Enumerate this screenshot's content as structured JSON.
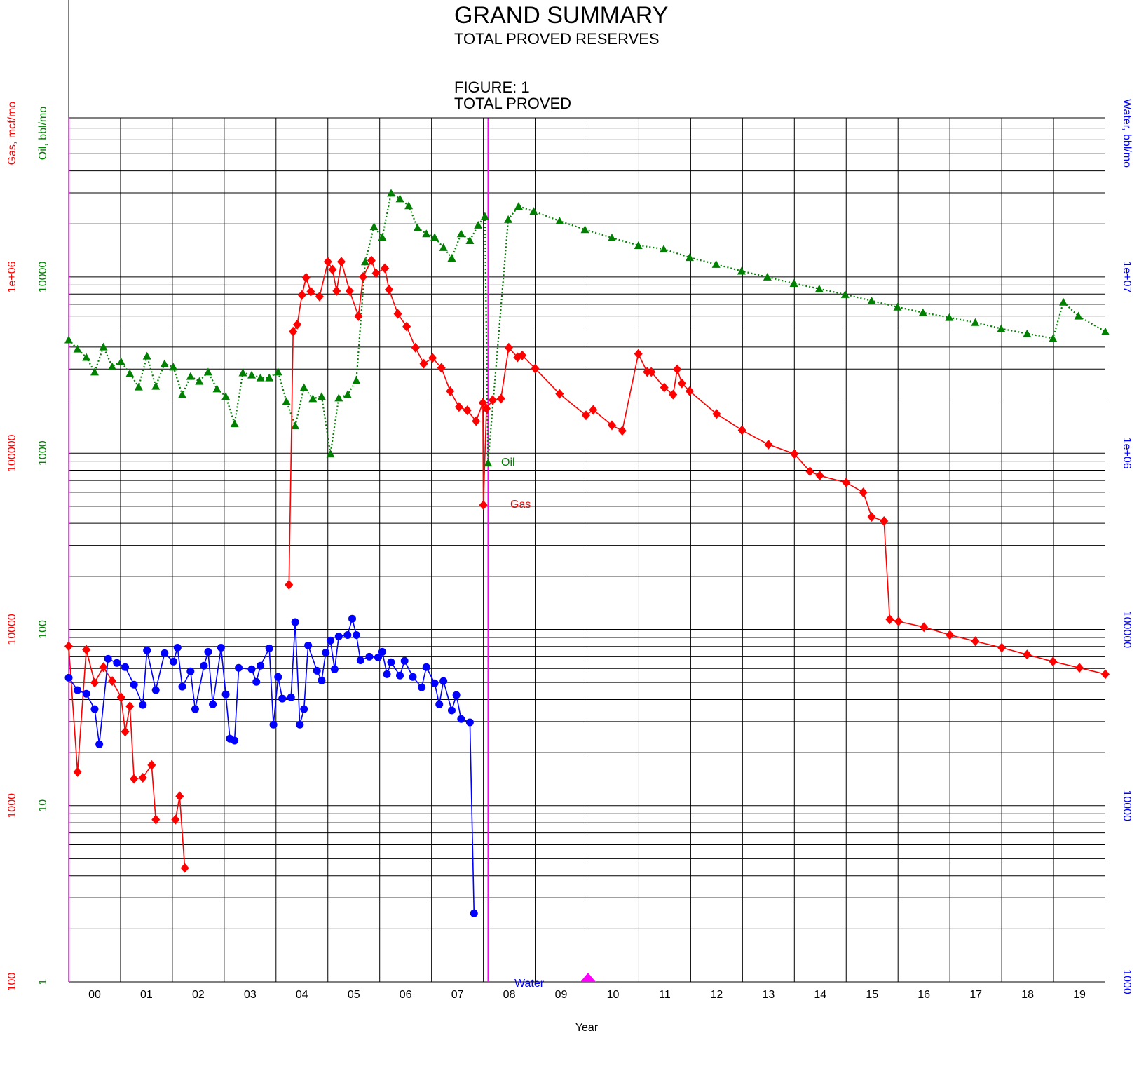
{
  "chart_data": {
    "type": "line",
    "title": "GRAND SUMMARY",
    "subtitle": "TOTAL PROVED RESERVES",
    "annotations": [
      "FIGURE: 1",
      "TOTAL PROVED"
    ],
    "x_label": "Year",
    "y_label": "Oil, bbl/mo",
    "y2_label": "Water, bbl/mo",
    "y3_label": "Gas, mcf/mo",
    "log_scale": true,
    "grid": true,
    "xlim": [
      2000,
      2020
    ],
    "xticks": [
      {
        "value": 2000.5,
        "label": "00"
      },
      {
        "value": 2001.5,
        "label": "01"
      },
      {
        "value": 2002.5,
        "label": "02"
      },
      {
        "value": 2003.5,
        "label": "03"
      },
      {
        "value": 2004.5,
        "label": "04"
      },
      {
        "value": 2005.5,
        "label": "05"
      },
      {
        "value": 2006.5,
        "label": "06"
      },
      {
        "value": 2007.5,
        "label": "07"
      },
      {
        "value": 2008.5,
        "label": "08"
      },
      {
        "value": 2009.5,
        "label": "09"
      },
      {
        "value": 2010.5,
        "label": "10"
      },
      {
        "value": 2011.5,
        "label": "11"
      },
      {
        "value": 2012.5,
        "label": "12"
      },
      {
        "value": 2013.5,
        "label": "13"
      },
      {
        "value": 2014.5,
        "label": "14"
      },
      {
        "value": 2015.5,
        "label": "15"
      },
      {
        "value": 2016.5,
        "label": "16"
      },
      {
        "value": 2017.5,
        "label": "17"
      },
      {
        "value": 2018.5,
        "label": "18"
      },
      {
        "value": 2019.5,
        "label": "19"
      }
    ],
    "xgrid": [
      2001,
      2002,
      2003,
      2004,
      2005,
      2006,
      2007,
      2008,
      2009,
      2010,
      2011,
      2012,
      2013,
      2014,
      2015,
      2016,
      2017,
      2018,
      2019
    ],
    "ylim": [
      1,
      80000
    ],
    "yticks": [
      1,
      10,
      100,
      1000,
      10000
    ],
    "ygrid": [
      2,
      3,
      4,
      5,
      6,
      7,
      8,
      9,
      20,
      30,
      40,
      50,
      60,
      70,
      80,
      90,
      200,
      300,
      400,
      500,
      600,
      700,
      800,
      900,
      2000,
      3000,
      4000,
      5000,
      6000,
      7000,
      8000,
      9000,
      20000,
      30000,
      40000,
      50000,
      60000,
      70000,
      80000
    ],
    "y2lim": [
      1000,
      80000000
    ],
    "y2ticks": [
      1000,
      10000,
      100000,
      {
        "value": 1000000,
        "label": "1e+06"
      },
      {
        "value": 10000000,
        "label": "1e+07"
      }
    ],
    "y3lim": [
      100,
      8000000
    ],
    "y3ticks": [
      100,
      1000,
      10000,
      100000,
      {
        "value": 1000000,
        "label": "1e+06"
      }
    ],
    "reference_lines": [
      2000,
      2008.09
    ],
    "reference_color": "#ff00ff",
    "marker_x": 2010.02,
    "series": [
      {
        "name": "Oil",
        "color": "#008000",
        "marker": "triangle",
        "dash": "dotted",
        "x": [
          2000.0,
          2000.17,
          2000.34,
          2000.5,
          2000.67,
          2000.84,
          2001.01,
          2001.18,
          2001.35,
          2001.51,
          2001.68,
          2001.85,
          2002.02,
          2002.19,
          2002.35,
          2002.52,
          2002.69,
          2002.86,
          2003.03,
          2003.2,
          2003.36,
          2003.53,
          2003.7,
          2003.87,
          2004.04,
          2004.2,
          2004.37,
          2004.54,
          2004.71,
          2004.88,
          2005.05,
          2005.21,
          2005.38,
          2005.55,
          2005.72,
          2005.89,
          2006.05,
          2006.22,
          2006.39,
          2006.56,
          2006.73,
          2006.9,
          2007.06,
          2007.23,
          2007.39,
          2007.57,
          2007.74,
          2007.9,
          2008.03,
          2008.09,
          2008.48,
          2008.68,
          2008.97,
          2009.47,
          2009.96,
          2010.48,
          2010.99,
          2011.48,
          2011.98,
          2012.49,
          2012.98,
          2013.48,
          2013.99,
          2014.48,
          2014.98,
          2015.49,
          2015.99,
          2016.48,
          2016.99,
          2017.49,
          2017.99,
          2018.49,
          2018.99,
          2019.19,
          2019.48,
          2020.0
        ],
        "values": [
          4400,
          3900,
          3500,
          2890,
          4010,
          3100,
          3310,
          2830,
          2380,
          3560,
          2400,
          3220,
          3080,
          2150,
          2730,
          2560,
          2890,
          2320,
          2100,
          1470,
          2860,
          2780,
          2680,
          2680,
          2890,
          1970,
          1430,
          2360,
          2040,
          2100,
          990,
          2060,
          2150,
          2590,
          12200,
          19300,
          16800,
          29900,
          27800,
          25400,
          19000,
          17600,
          16800,
          14700,
          12800,
          17600,
          16100,
          19700,
          22100,
          880,
          21200,
          25200,
          23600,
          20800,
          18600,
          16700,
          15100,
          14400,
          12900,
          11800,
          10800,
          10000,
          9200,
          8570,
          7960,
          7330,
          6750,
          6280,
          5890,
          5520,
          5090,
          4770,
          4480,
          7200,
          6000,
          4900
        ]
      },
      {
        "name": "Gas",
        "color": "#ff0000",
        "marker": "diamond",
        "dash": "solid",
        "axis": "y3",
        "x": [
          2000.0,
          2000.17,
          2000.34,
          2000.5,
          2000.67,
          2000.84,
          2001.01,
          2001.09,
          2001.18,
          2001.26,
          2001.43,
          2001.6,
          2001.68,
          null,
          2002.06,
          2002.14,
          2002.24,
          null,
          2004.25,
          2004.33,
          2004.41,
          2004.5,
          2004.58,
          2004.67,
          2004.84,
          2005.0,
          2005.09,
          2005.17,
          2005.26,
          2005.42,
          2005.59,
          2005.68,
          2005.84,
          2005.93,
          2006.1,
          2006.18,
          2006.35,
          2006.52,
          2006.69,
          2006.85,
          2007.02,
          2007.19,
          2007.36,
          2007.53,
          2007.69,
          2007.86,
          2007.99,
          2008.0,
          2008.06,
          2008.18,
          2008.34,
          2008.49,
          2008.66,
          2008.75,
          2009.0,
          2009.47,
          2009.98,
          2010.12,
          2010.48,
          2010.68,
          2010.99,
          2011.16,
          2011.24,
          2011.49,
          2011.66,
          2011.74,
          2011.83,
          2011.98,
          2012.5,
          2012.99,
          2013.5,
          2014.0,
          2014.3,
          2014.49,
          2015.0,
          2015.33,
          2015.49,
          2015.73,
          2015.84,
          2016.01,
          2016.5,
          2017.0,
          2017.49,
          2018.0,
          2018.49,
          2018.99,
          2019.5,
          2020.0
        ],
        "values": [
          8030,
          1550,
          7670,
          4990,
          6110,
          5090,
          4120,
          2630,
          3660,
          1420,
          1440,
          1700,
          833,
          null,
          833,
          1130,
          443,
          null,
          17900,
          490000,
          537000,
          789000,
          991000,
          826000,
          774000,
          1220000,
          1100000,
          833000,
          1220000,
          833000,
          599000,
          1000000,
          1240000,
          1050000,
          1120000,
          849000,
          617000,
          523000,
          397000,
          322000,
          347000,
          305000,
          225000,
          183000,
          175000,
          152000,
          193000,
          50800,
          179000,
          200000,
          204000,
          397000,
          350000,
          359000,
          302000,
          217000,
          164000,
          176000,
          144000,
          134000,
          366000,
          289000,
          289000,
          236000,
          215000,
          299000,
          249000,
          225000,
          167000,
          135000,
          112000,
          99100,
          78800,
          74600,
          68100,
          59900,
          43500,
          41200,
          11400,
          11100,
          10300,
          9300,
          8570,
          7880,
          7200,
          6570,
          6050,
          5570
        ]
      },
      {
        "name": "Water",
        "color": "#0000ff",
        "marker": "circle",
        "dash": "solid",
        "axis": "y2",
        "x": [
          2000.0,
          2000.17,
          2000.34,
          2000.5,
          2000.59,
          2000.76,
          2000.93,
          2001.09,
          2001.26,
          2001.43,
          2001.51,
          2001.68,
          2001.85,
          2002.02,
          2002.1,
          2002.19,
          2002.35,
          2002.44,
          2002.61,
          2002.69,
          2002.78,
          2002.94,
          2003.03,
          2003.11,
          2003.2,
          2003.28,
          2003.53,
          2003.62,
          2003.7,
          2003.87,
          2003.95,
          2004.04,
          2004.12,
          2004.29,
          2004.37,
          2004.46,
          2004.54,
          2004.62,
          2004.79,
          2004.88,
          2004.96,
          2005.05,
          2005.13,
          2005.21,
          2005.38,
          2005.47,
          2005.55,
          2005.63,
          2005.8,
          2005.97,
          2006.05,
          2006.14,
          2006.22,
          2006.39,
          2006.48,
          2006.64,
          2006.81,
          2006.9,
          2007.06,
          2007.15,
          2007.23,
          2007.39,
          2007.48,
          2007.57,
          2007.74,
          2007.82
        ],
        "values": [
          53200,
          45200,
          43100,
          35300,
          22300,
          68100,
          64500,
          61100,
          48600,
          37300,
          76000,
          45200,
          73300,
          65700,
          78800,
          47300,
          57800,
          35300,
          62200,
          74600,
          37600,
          78800,
          42800,
          24000,
          23400,
          60500,
          59400,
          50400,
          62200,
          78100,
          28800,
          53700,
          40500,
          41200,
          110000,
          28800,
          35300,
          81100,
          58300,
          51300,
          73900,
          86400,
          59400,
          91200,
          92900,
          115000,
          92900,
          66800,
          70000,
          69400,
          74600,
          55700,
          65100,
          54700,
          66300,
          53700,
          46900,
          61100,
          49500,
          37600,
          50900,
          34700,
          42400,
          31000,
          29700,
          2450
        ]
      }
    ]
  }
}
